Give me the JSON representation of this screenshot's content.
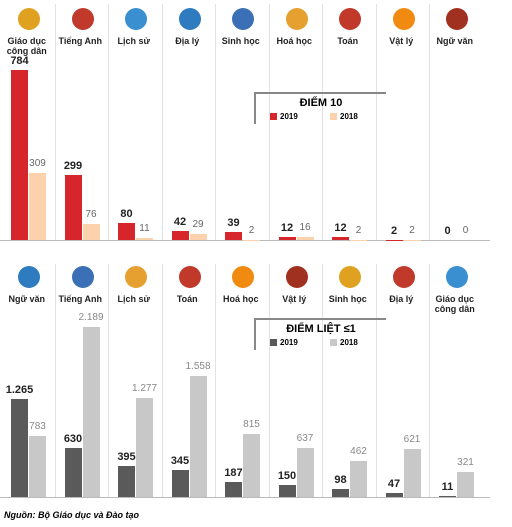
{
  "chart_data": [
    {
      "type": "bar",
      "title": "ĐIỂM 10",
      "categories": [
        "Giáo dục công dân",
        "Tiếng Anh",
        "Lịch sử",
        "Địa lý",
        "Sinh học",
        "Hoá học",
        "Toán",
        "Vật lý",
        "Ngữ văn"
      ],
      "series": [
        {
          "name": "2019",
          "color": "#d7262b",
          "values": [
            784,
            299,
            80,
            42,
            39,
            12,
            12,
            2,
            0
          ]
        },
        {
          "name": "2018",
          "color": "#fcd2ad",
          "values": [
            309,
            76,
            11,
            29,
            2,
            16,
            2,
            2,
            0
          ]
        }
      ]
    },
    {
      "type": "bar",
      "title": "ĐIỂM LIỆT ≤1",
      "categories": [
        "Ngữ văn",
        "Tiếng Anh",
        "Lịch sử",
        "Toán",
        "Hoá học",
        "Vật lý",
        "Sinh học",
        "Địa lý",
        "Giáo dục công dân"
      ],
      "series": [
        {
          "name": "2019",
          "color": "#5a5a5a",
          "values": [
            1265,
            630,
            395,
            345,
            187,
            150,
            98,
            47,
            11
          ],
          "value_labels": [
            "1.265",
            "630",
            "395",
            "345",
            "187",
            "150",
            "98",
            "47",
            "11"
          ]
        },
        {
          "name": "2018",
          "color": "#c8c8c8",
          "values": [
            783,
            2189,
            1277,
            1558,
            815,
            637,
            462,
            621,
            321
          ],
          "value_labels": [
            "783",
            "2.189",
            "1.277",
            "1.558",
            "815",
            "637",
            "462",
            "621",
            "321"
          ]
        }
      ]
    }
  ],
  "source": "Nguồn: Bộ Giáo dục và Đào tạo"
}
